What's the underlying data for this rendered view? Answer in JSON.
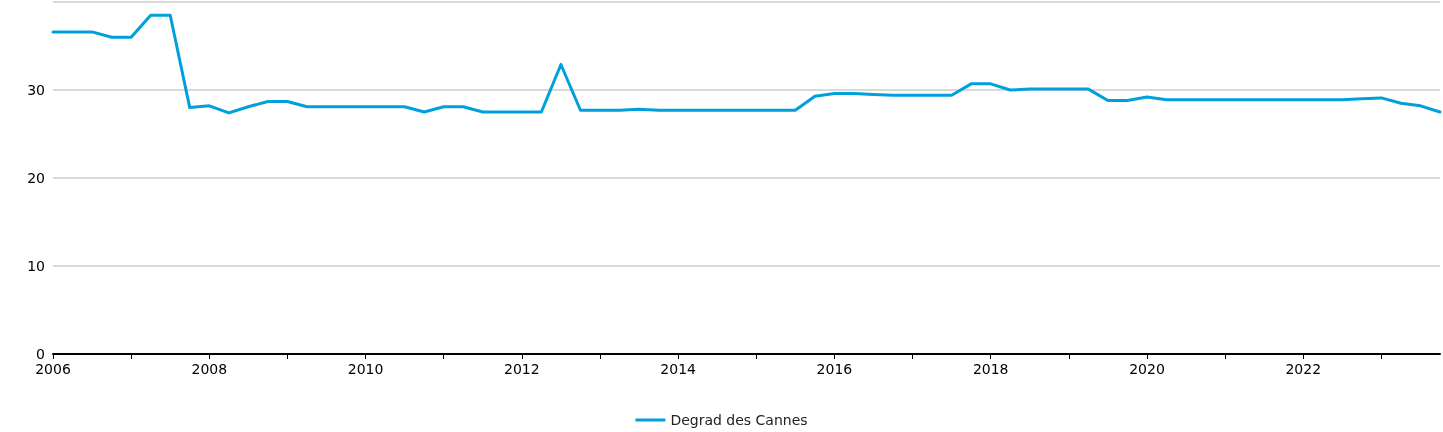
{
  "chart_data": {
    "type": "line",
    "x": [
      2006,
      2006.25,
      2006.5,
      2006.75,
      2007,
      2007.25,
      2007.5,
      2007.75,
      2008,
      2008.25,
      2008.5,
      2008.75,
      2009,
      2009.25,
      2009.5,
      2009.75,
      2010,
      2010.25,
      2010.5,
      2010.75,
      2011,
      2011.25,
      2011.5,
      2011.75,
      2012,
      2012.25,
      2012.5,
      2012.75,
      2013,
      2013.25,
      2013.5,
      2013.75,
      2014,
      2014.25,
      2014.5,
      2014.75,
      2015,
      2015.25,
      2015.5,
      2015.75,
      2016,
      2016.25,
      2016.5,
      2016.75,
      2017,
      2017.25,
      2017.5,
      2017.75,
      2018,
      2018.25,
      2018.5,
      2018.75,
      2019,
      2019.25,
      2019.5,
      2019.75,
      2020,
      2020.25,
      2020.5,
      2020.75,
      2021,
      2021.25,
      2021.5,
      2021.75,
      2022,
      2022.25,
      2022.5,
      2022.75,
      2023,
      2023.25,
      2023.5,
      2023.75
    ],
    "series": [
      {
        "name": "Degrad des Cannes",
        "color": "#00a0dc",
        "values": [
          36.6,
          36.6,
          36.6,
          36.0,
          36.0,
          38.5,
          38.5,
          28.0,
          28.2,
          27.4,
          28.1,
          28.7,
          28.7,
          28.1,
          28.1,
          28.1,
          28.1,
          28.1,
          28.1,
          27.5,
          28.1,
          28.1,
          27.5,
          27.5,
          27.5,
          27.5,
          32.9,
          27.7,
          27.7,
          27.7,
          27.8,
          27.7,
          27.7,
          27.7,
          27.7,
          27.7,
          27.7,
          27.7,
          27.7,
          29.3,
          29.6,
          29.6,
          29.5,
          29.4,
          29.4,
          29.4,
          29.4,
          30.7,
          30.7,
          30.0,
          30.1,
          30.1,
          30.1,
          30.1,
          28.8,
          28.8,
          29.2,
          28.9,
          28.9,
          28.9,
          28.9,
          28.9,
          28.9,
          28.9,
          28.9,
          28.9,
          28.9,
          29.0,
          29.1,
          28.5,
          28.2,
          27.5
        ]
      }
    ],
    "xlim": [
      2006,
      2023.75
    ],
    "xticks": [
      2006,
      {
        "value": 2007,
        "label": null
      },
      2008,
      {
        "value": 2009,
        "label": null
      },
      2010,
      {
        "value": 2011,
        "label": null
      },
      2012,
      {
        "value": 2013,
        "label": null
      },
      2014,
      {
        "value": 2015,
        "label": null
      },
      2016,
      {
        "value": 2017,
        "label": null
      },
      2018,
      {
        "value": 2019,
        "label": null
      },
      2020,
      {
        "value": 2021,
        "label": null
      },
      2022,
      {
        "value": 2023,
        "label": null
      }
    ],
    "ylim": [
      0,
      40
    ],
    "yticks": [
      0,
      10,
      20,
      30,
      {
        "value": 40,
        "label": null
      }
    ],
    "grid": "y",
    "legend": "bottom",
    "marker": "none",
    "line_style": "solid"
  }
}
